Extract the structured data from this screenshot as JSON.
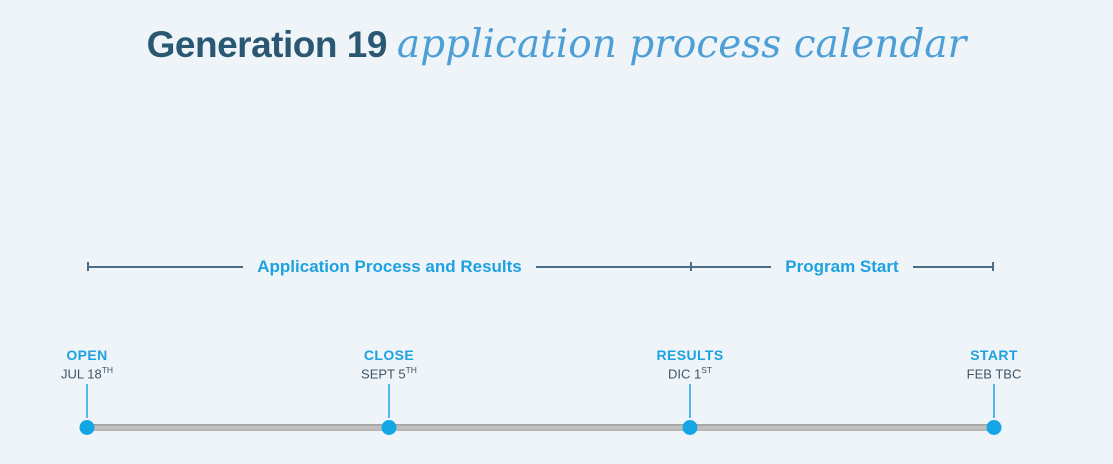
{
  "title": {
    "main": "Generation 19",
    "accent": "application process calendar"
  },
  "phases": [
    {
      "label": "Application Process and Results"
    },
    {
      "label": "Program Start"
    }
  ],
  "events": [
    {
      "name": "OPEN",
      "date": "JUL 18",
      "date_superscript": "TH"
    },
    {
      "name": "CLOSE",
      "date": "SEPT 5",
      "date_superscript": "TH"
    },
    {
      "name": "RESULTS",
      "date": "DIC 1",
      "date_superscript": "ST"
    },
    {
      "name": "START",
      "date": "FEB TBC",
      "date_superscript": ""
    }
  ],
  "colors": {
    "background": "#eff4f9",
    "title_dark": "#2a5873",
    "title_accent_blue": "#4d9fd6",
    "highlight_blue": "#1da2e0",
    "dot_blue": "#14a5e4",
    "connector_blue": "#55b8e8",
    "date_text": "#3e5466",
    "bracket_line": "#4a6d88",
    "timeline_gray": "#b3b3b3"
  }
}
